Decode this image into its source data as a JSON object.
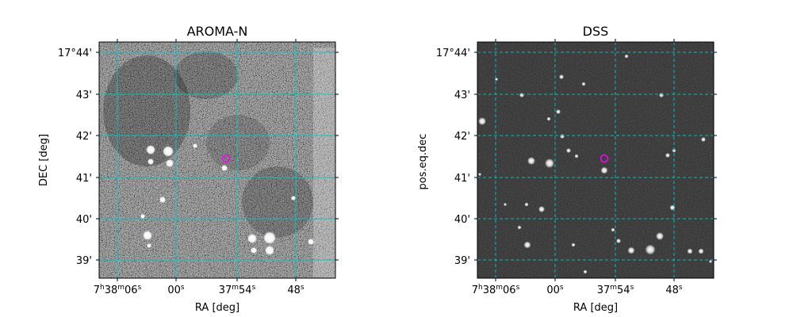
{
  "figure": {
    "panels": [
      {
        "id": "left",
        "title": "AROMA-N",
        "xlabel": "RA [deg]",
        "ylabel": "DEC [deg]",
        "image_style": "noisy grayscale sky image (high contrast)",
        "grid_style": "solid cyan",
        "marker": {
          "shape": "circle",
          "color": "#ff00ff"
        }
      },
      {
        "id": "right",
        "title": "DSS",
        "xlabel": "RA [deg]",
        "ylabel": "pos.eq.dec",
        "image_style": "dark grayscale sky image with point sources",
        "grid_style": "dashed cyan",
        "marker": {
          "shape": "circle",
          "color": "#ff00ff"
        }
      }
    ],
    "dec_ticks": [
      "17°44'",
      "43'",
      "42'",
      "41'",
      "40'",
      "39'"
    ],
    "ra_ticks": [
      "7h38m06s",
      "00s",
      "37m54s",
      "48s"
    ],
    "grid_color": "#00c8c8"
  }
}
